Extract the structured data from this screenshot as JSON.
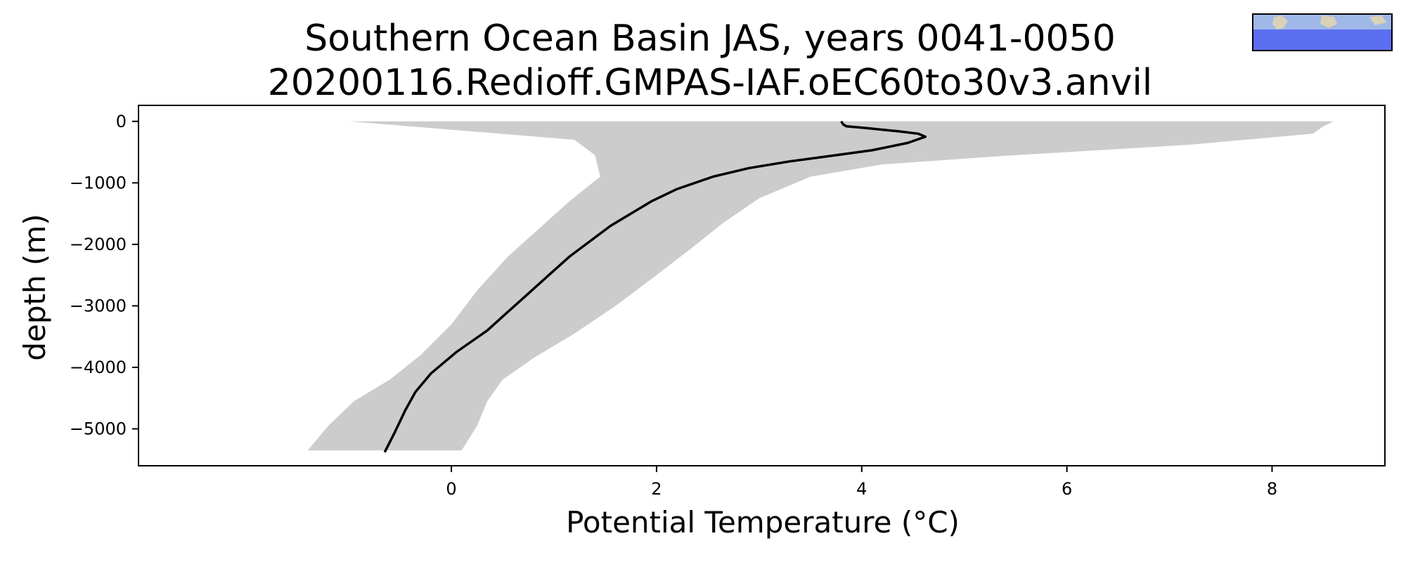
{
  "chart_data": {
    "type": "line",
    "title_lines": [
      "Southern Ocean Basin JAS, years 0041-0050",
      "20200116.Redioff.GMPAS-IAF.oEC60to30v3.anvil"
    ],
    "xlabel": "Potential Temperature (°C)",
    "ylabel": "depth (m)",
    "xlim": [
      -3.05,
      9.1
    ],
    "ylim": [
      -5600,
      260
    ],
    "xticks": [
      0,
      2,
      4,
      6,
      8
    ],
    "yticks": [
      0,
      -1000,
      -2000,
      -3000,
      -4000,
      -5000
    ],
    "xtick_labels": [
      "0",
      "2",
      "4",
      "6",
      "8"
    ],
    "ytick_labels": [
      "0",
      "−1000",
      "−2000",
      "−3000",
      "−4000",
      "−5000"
    ],
    "grid": false,
    "colors": {
      "mean_line": "#000000",
      "spread_fill": "#cccccc",
      "inset_water": "#5c6ef0",
      "inset_land": "#9fb8e8"
    },
    "inset_icon": "southern-ocean-region-map-icon",
    "series": [
      {
        "kind": "line",
        "points": [
          [
            3.8,
            0
          ],
          [
            3.82,
            -50
          ],
          [
            3.85,
            -80
          ],
          [
            4.05,
            -110
          ],
          [
            4.35,
            -160
          ],
          [
            4.55,
            -200
          ],
          [
            4.62,
            -250
          ],
          [
            4.45,
            -350
          ],
          [
            4.1,
            -470
          ],
          [
            3.75,
            -550
          ],
          [
            3.3,
            -650
          ],
          [
            2.9,
            -760
          ],
          [
            2.55,
            -900
          ],
          [
            2.2,
            -1100
          ],
          [
            1.95,
            -1300
          ],
          [
            1.75,
            -1500
          ],
          [
            1.55,
            -1700
          ],
          [
            1.35,
            -1950
          ],
          [
            1.15,
            -2200
          ],
          [
            0.95,
            -2500
          ],
          [
            0.75,
            -2800
          ],
          [
            0.55,
            -3100
          ],
          [
            0.35,
            -3400
          ],
          [
            0.05,
            -3750
          ],
          [
            -0.2,
            -4100
          ],
          [
            -0.35,
            -4400
          ],
          [
            -0.45,
            -4700
          ],
          [
            -0.55,
            -5050
          ],
          [
            -0.65,
            -5380
          ]
        ]
      },
      {
        "kind": "band",
        "upper": [
          [
            8.6,
            0
          ],
          [
            8.5,
            -80
          ],
          [
            8.4,
            -200
          ],
          [
            7.2,
            -380
          ],
          [
            5.4,
            -560
          ],
          [
            4.2,
            -700
          ],
          [
            3.5,
            -900
          ],
          [
            3.0,
            -1250
          ],
          [
            2.65,
            -1650
          ],
          [
            2.35,
            -2050
          ],
          [
            2.0,
            -2500
          ],
          [
            1.6,
            -3000
          ],
          [
            1.2,
            -3450
          ],
          [
            0.8,
            -3850
          ],
          [
            0.5,
            -4200
          ],
          [
            0.35,
            -4550
          ],
          [
            0.25,
            -4950
          ],
          [
            0.1,
            -5350
          ]
        ],
        "lower": [
          [
            -1.0,
            0
          ],
          [
            -0.85,
            -20
          ],
          [
            1.2,
            -300
          ],
          [
            1.4,
            -550
          ],
          [
            1.45,
            -900
          ],
          [
            1.15,
            -1300
          ],
          [
            0.85,
            -1750
          ],
          [
            0.55,
            -2200
          ],
          [
            0.25,
            -2750
          ],
          [
            0.0,
            -3300
          ],
          [
            -0.3,
            -3800
          ],
          [
            -0.6,
            -4200
          ],
          [
            -0.95,
            -4550
          ],
          [
            -1.2,
            -4950
          ],
          [
            -1.4,
            -5350
          ]
        ]
      }
    ]
  }
}
